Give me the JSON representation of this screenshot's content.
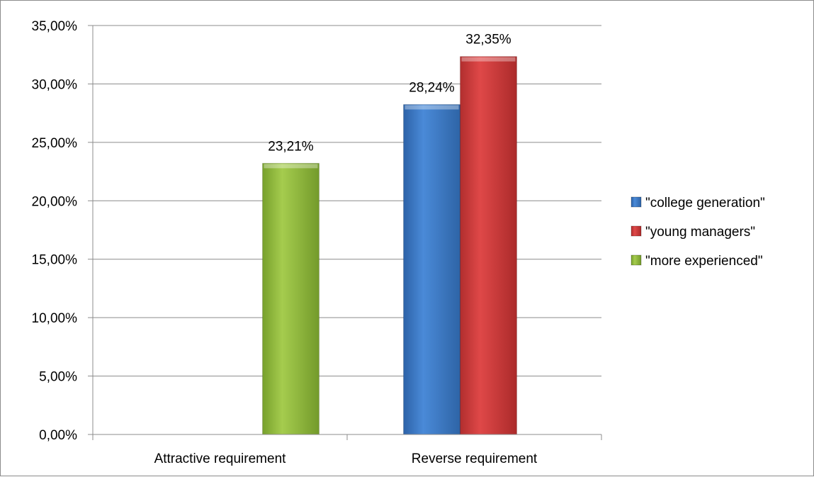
{
  "chart_data": {
    "type": "bar",
    "categories": [
      "Attractive requirement",
      "Reverse requirement"
    ],
    "series": [
      {
        "name": "\"college generation\"",
        "color": "#3a78c6",
        "values": [
          null,
          28.24
        ],
        "labels": [
          "",
          "28,24%"
        ]
      },
      {
        "name": "\"young managers\"",
        "color": "#cc3a3a",
        "values": [
          null,
          32.35
        ],
        "labels": [
          "",
          "32,35%"
        ]
      },
      {
        "name": "\"more experienced\"",
        "color": "#8db53a",
        "values": [
          23.21,
          null
        ],
        "labels": [
          "23,21%",
          ""
        ]
      }
    ],
    "yticks": [
      0,
      5,
      10,
      15,
      20,
      25,
      30,
      35
    ],
    "ytick_labels": [
      "0,00%",
      "5,00%",
      "10,00%",
      "15,00%",
      "20,00%",
      "25,00%",
      "30,00%",
      "35,00%"
    ],
    "ylim": [
      0,
      35
    ],
    "grid": true,
    "legend_position": "right",
    "title": "",
    "xlabel": "",
    "ylabel": ""
  }
}
